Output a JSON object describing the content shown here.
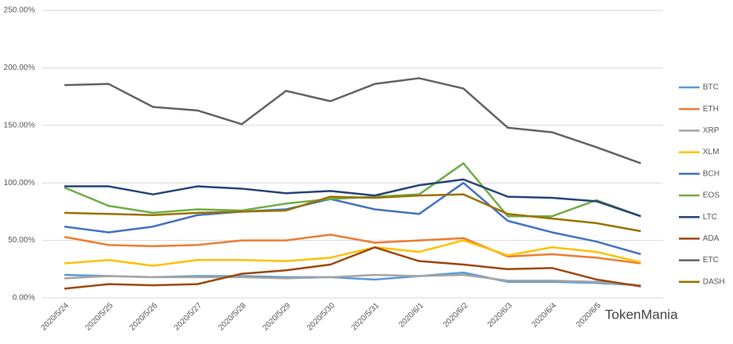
{
  "chart_data": {
    "type": "line",
    "categories": [
      "2020/5/24",
      "2020/5/25",
      "2020/5/26",
      "2020/5/27",
      "2020/5/28",
      "2020/5/29",
      "2020/5/30",
      "2020/5/31",
      "2020/6/1",
      "2020/6/2",
      "2020/6/3",
      "2020/6/4",
      "2020/6/5",
      null
    ],
    "series": [
      {
        "name": "BTC",
        "color": "#5b9bd5",
        "values": [
          20,
          19,
          18,
          19,
          19,
          18,
          18,
          16,
          19,
          22,
          14,
          14,
          13,
          11
        ]
      },
      {
        "name": "ETH",
        "color": "#ed7d31",
        "values": [
          53,
          46,
          45,
          46,
          50,
          50,
          55,
          48,
          50,
          52,
          36,
          38,
          35,
          30
        ]
      },
      {
        "name": "XRP",
        "color": "#a5a5a5",
        "values": [
          17,
          19,
          18,
          18,
          18,
          17,
          18,
          20,
          19,
          20,
          15,
          15,
          14,
          11
        ]
      },
      {
        "name": "XLM",
        "color": "#ffc000",
        "values": [
          30,
          33,
          28,
          33,
          33,
          32,
          35,
          44,
          40,
          50,
          37,
          44,
          40,
          31
        ]
      },
      {
        "name": "BCH",
        "color": "#4472c4",
        "values": [
          62,
          57,
          62,
          72,
          75,
          77,
          86,
          77,
          73,
          100,
          67,
          57,
          49,
          38
        ]
      },
      {
        "name": "EOS",
        "color": "#70ad47",
        "values": [
          96,
          80,
          74,
          77,
          76,
          82,
          86,
          88,
          90,
          117,
          71,
          71,
          85,
          71
        ]
      },
      {
        "name": "LTC",
        "color": "#264478",
        "values": [
          97,
          97,
          90,
          97,
          95,
          91,
          93,
          89,
          98,
          103,
          88,
          87,
          84,
          71
        ]
      },
      {
        "name": "ADA",
        "color": "#9e480e",
        "values": [
          8,
          12,
          11,
          12,
          21,
          24,
          29,
          44,
          32,
          29,
          25,
          26,
          16,
          10
        ]
      },
      {
        "name": "ETC",
        "color": "#636363",
        "values": [
          185,
          186,
          166,
          163,
          151,
          180,
          171,
          186,
          191,
          182,
          148,
          144,
          131,
          117
        ]
      },
      {
        "name": "DASH",
        "color": "#997300",
        "values": [
          74,
          73,
          72,
          74,
          75,
          76,
          88,
          87,
          89,
          90,
          73,
          69,
          65,
          58
        ]
      }
    ],
    "ylim": [
      0,
      250
    ],
    "yticks": [
      {
        "value": 0,
        "label": "0.00%"
      },
      {
        "value": 50,
        "label": "50.00%"
      },
      {
        "value": 100,
        "label": "100.00%"
      },
      {
        "value": 150,
        "label": "150.00%"
      },
      {
        "value": 200,
        "label": "200.00%"
      },
      {
        "value": 250,
        "label": "250.00%"
      }
    ],
    "grid": true,
    "legend": "right",
    "watermark": "TokenMania"
  }
}
